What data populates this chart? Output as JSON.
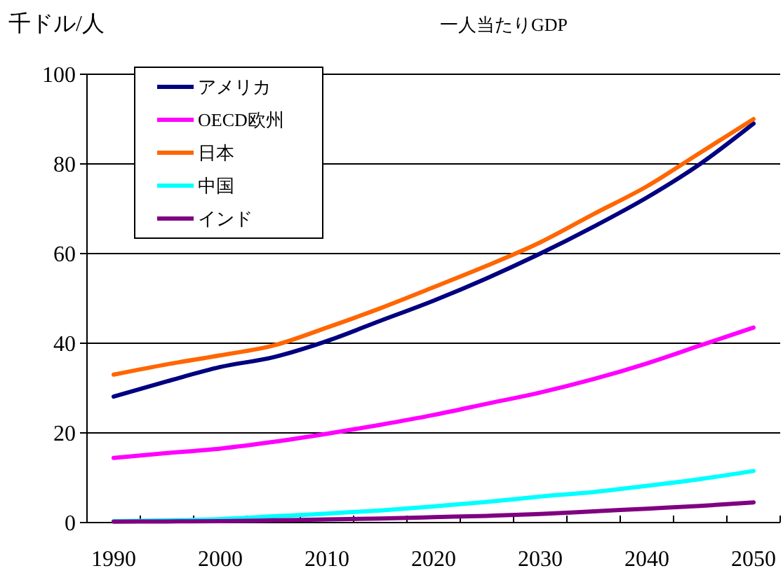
{
  "chart_data": {
    "type": "line",
    "title": "一人当たりGDP",
    "ylabel": "千ドル/人",
    "categories": [
      "1990",
      null,
      "2000",
      null,
      "2010",
      null,
      "2020",
      null,
      "2030",
      null,
      "2040",
      null,
      "2050"
    ],
    "series": [
      {
        "name": "アメリカ",
        "color": "#000080",
        "values": [
          28.1,
          31.5,
          34.7,
          36.9,
          40.5,
          45,
          49.5,
          54.5,
          60,
          66,
          72.5,
          80,
          89
        ]
      },
      {
        "name": "OECD欧州",
        "color": "#ff00ff",
        "values": [
          14.4,
          15.5,
          16.5,
          18,
          19.8,
          21.8,
          24,
          26.5,
          29,
          32,
          35.5,
          39.5,
          43.5
        ]
      },
      {
        "name": "日本",
        "color": "#ff6600",
        "values": [
          33,
          35.3,
          37.3,
          39.5,
          43.5,
          47.8,
          52.5,
          57.3,
          62.5,
          68.8,
          75,
          82.5,
          90
        ]
      },
      {
        "name": "中国",
        "color": "#00ffff",
        "values": [
          0.3,
          0.5,
          0.8,
          1.4,
          2,
          2.7,
          3.6,
          4.6,
          5.8,
          6.8,
          8.2,
          9.7,
          11.5
        ]
      },
      {
        "name": "インド",
        "color": "#800080",
        "values": [
          0.2,
          0.25,
          0.3,
          0.5,
          0.7,
          0.9,
          1.2,
          1.5,
          1.9,
          2.5,
          3.1,
          3.7,
          4.5
        ]
      }
    ],
    "ylim": [
      0,
      100
    ],
    "yticks": [
      0,
      20,
      40,
      60,
      80,
      100
    ],
    "grid": "y",
    "legend": "top left"
  }
}
